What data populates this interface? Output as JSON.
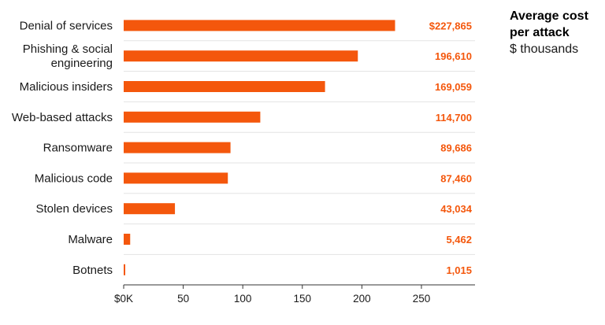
{
  "chart_data": {
    "type": "bar",
    "orientation": "horizontal",
    "title": "Average cost per attack",
    "subtitle": "$ thousands",
    "categories": [
      [
        "Denial of services"
      ],
      [
        "Phishing & social",
        "engineering"
      ],
      [
        "Malicious insiders"
      ],
      [
        "Web-based attacks"
      ],
      [
        "Ransomware"
      ],
      [
        "Malicious code"
      ],
      [
        "Stolen devices"
      ],
      [
        "Malware"
      ],
      [
        "Botnets"
      ]
    ],
    "values": [
      227.865,
      196.61,
      169.059,
      114.7,
      89.686,
      87.46,
      43.034,
      5.462,
      1.015
    ],
    "value_labels": [
      "$227,865",
      "196,610",
      "169,059",
      "114,700",
      "89,686",
      "87,460",
      "43,034",
      "5,462",
      "1,015"
    ],
    "xlim": [
      0,
      295
    ],
    "xticks": [
      0,
      50,
      100,
      150,
      200,
      250
    ],
    "xtick_labels": [
      "$0K",
      "50",
      "100",
      "150",
      "200",
      "250"
    ],
    "xlabel": "",
    "ylabel": "",
    "grid": "horizontal separators",
    "legend": "top-right",
    "colors": {
      "bar": "#f4570c",
      "label": "#f4570c",
      "text": "#1a1a1a",
      "grid": "#e3e3e3",
      "axis": "#333333"
    }
  }
}
